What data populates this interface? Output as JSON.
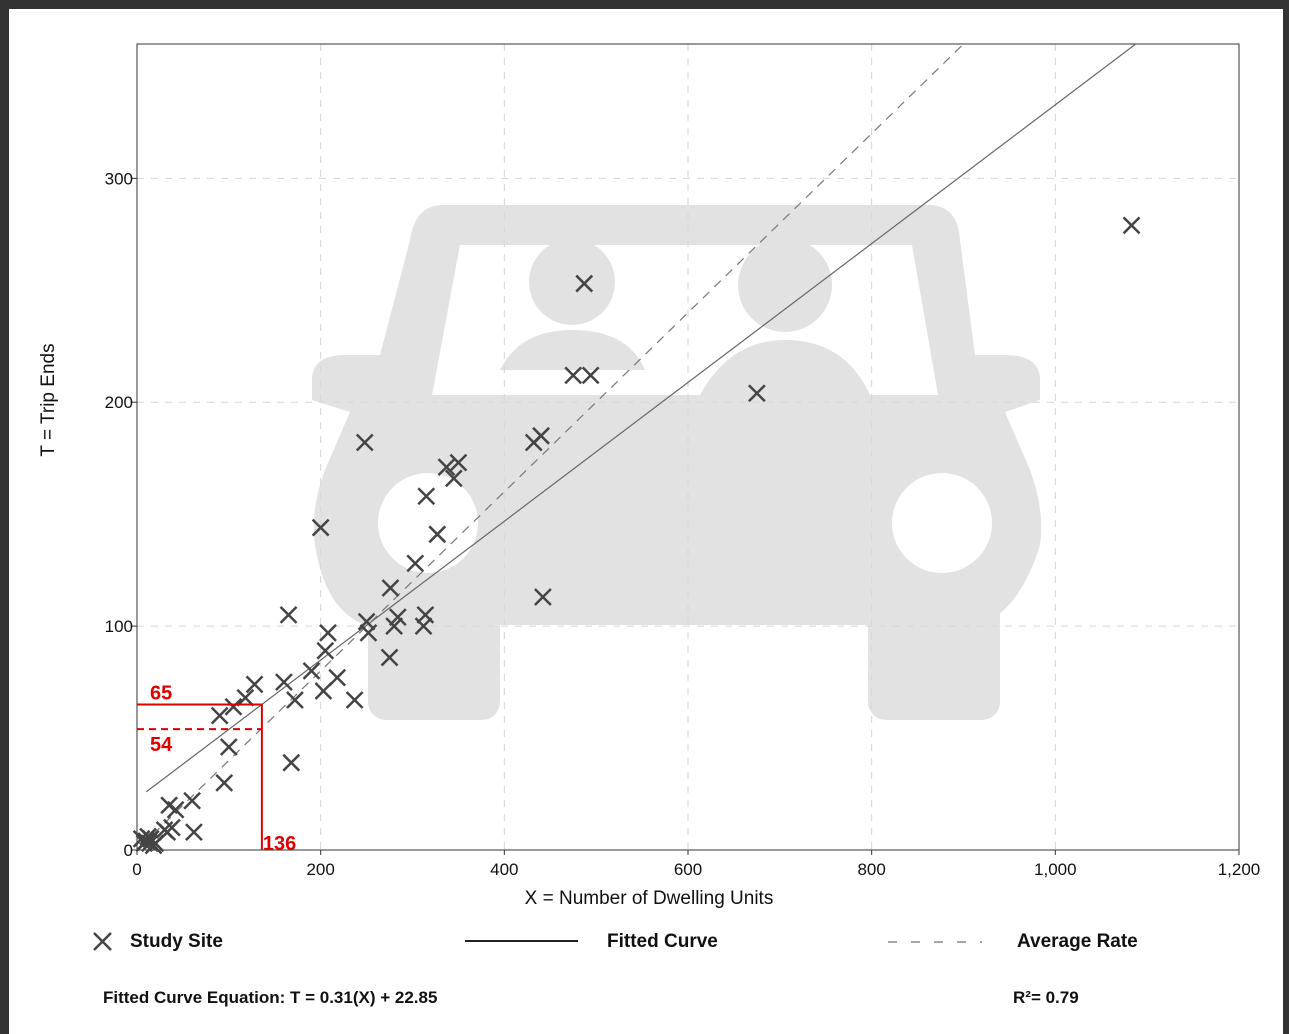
{
  "chart_data": {
    "type": "scatter",
    "xlabel": "X = Number of Dwelling Units",
    "ylabel": "T = Trip Ends",
    "xlim": [
      0,
      1200
    ],
    "ylim": [
      0,
      360
    ],
    "x_ticks": [
      0,
      200,
      400,
      600,
      800,
      1000,
      1200
    ],
    "x_tick_labels": [
      "0",
      "200",
      "400",
      "600",
      "800",
      "1,000",
      "1,200"
    ],
    "y_ticks": [
      0,
      100,
      200,
      300
    ],
    "y_tick_labels": [
      "0",
      "100",
      "200",
      "300"
    ],
    "grid": true,
    "series": [
      {
        "name": "Study Site",
        "marker": "x",
        "color": "#444444",
        "points": [
          [
            5,
            5
          ],
          [
            8,
            3
          ],
          [
            10,
            4
          ],
          [
            12,
            6
          ],
          [
            14,
            3
          ],
          [
            15,
            5
          ],
          [
            18,
            2
          ],
          [
            20,
            3
          ],
          [
            30,
            9
          ],
          [
            33,
            8
          ],
          [
            35,
            20
          ],
          [
            38,
            10
          ],
          [
            42,
            18
          ],
          [
            60,
            22
          ],
          [
            62,
            8
          ],
          [
            90,
            60
          ],
          [
            95,
            30
          ],
          [
            100,
            46
          ],
          [
            105,
            64
          ],
          [
            118,
            68
          ],
          [
            128,
            74
          ],
          [
            160,
            75
          ],
          [
            165,
            105
          ],
          [
            168,
            39
          ],
          [
            172,
            67
          ],
          [
            190,
            80
          ],
          [
            200,
            144
          ],
          [
            203,
            71
          ],
          [
            205,
            89
          ],
          [
            208,
            97
          ],
          [
            218,
            77
          ],
          [
            237,
            67
          ],
          [
            248,
            182
          ],
          [
            250,
            102
          ],
          [
            252,
            97
          ],
          [
            275,
            86
          ],
          [
            276,
            117
          ],
          [
            280,
            100
          ],
          [
            284,
            104
          ],
          [
            303,
            128
          ],
          [
            312,
            100
          ],
          [
            314,
            105
          ],
          [
            315,
            158
          ],
          [
            327,
            141
          ],
          [
            337,
            171
          ],
          [
            345,
            166
          ],
          [
            350,
            173
          ],
          [
            432,
            182
          ],
          [
            440,
            185
          ],
          [
            442,
            113
          ],
          [
            475,
            212
          ],
          [
            487,
            253
          ],
          [
            494,
            212
          ],
          [
            675,
            204
          ],
          [
            1083,
            279
          ]
        ]
      },
      {
        "name": "Fitted Curve",
        "type": "line",
        "slope": 0.31,
        "intercept": 22.85,
        "color": "#666666"
      },
      {
        "name": "Average Rate",
        "type": "line",
        "style": "dashed",
        "slope": 0.4,
        "intercept": 0,
        "color": "#777777"
      }
    ],
    "annotations": [
      {
        "label": "65",
        "x": 136,
        "y": 65,
        "style": "solid",
        "color": "#e00000"
      },
      {
        "label": "54",
        "x": 136,
        "y": 54,
        "style": "dashed",
        "color": "#e00000"
      },
      {
        "label": "136",
        "x": 136,
        "y": 0,
        "style": "solid",
        "color": "#e00000"
      }
    ],
    "legend": {
      "placement": "bottom",
      "items": [
        "Study Site",
        "Fitted Curve",
        "Average Rate"
      ]
    },
    "equation": "Fitted Curve Equation: T = 0.31(X) + 22.85",
    "r_squared": "R²= 0.79"
  }
}
